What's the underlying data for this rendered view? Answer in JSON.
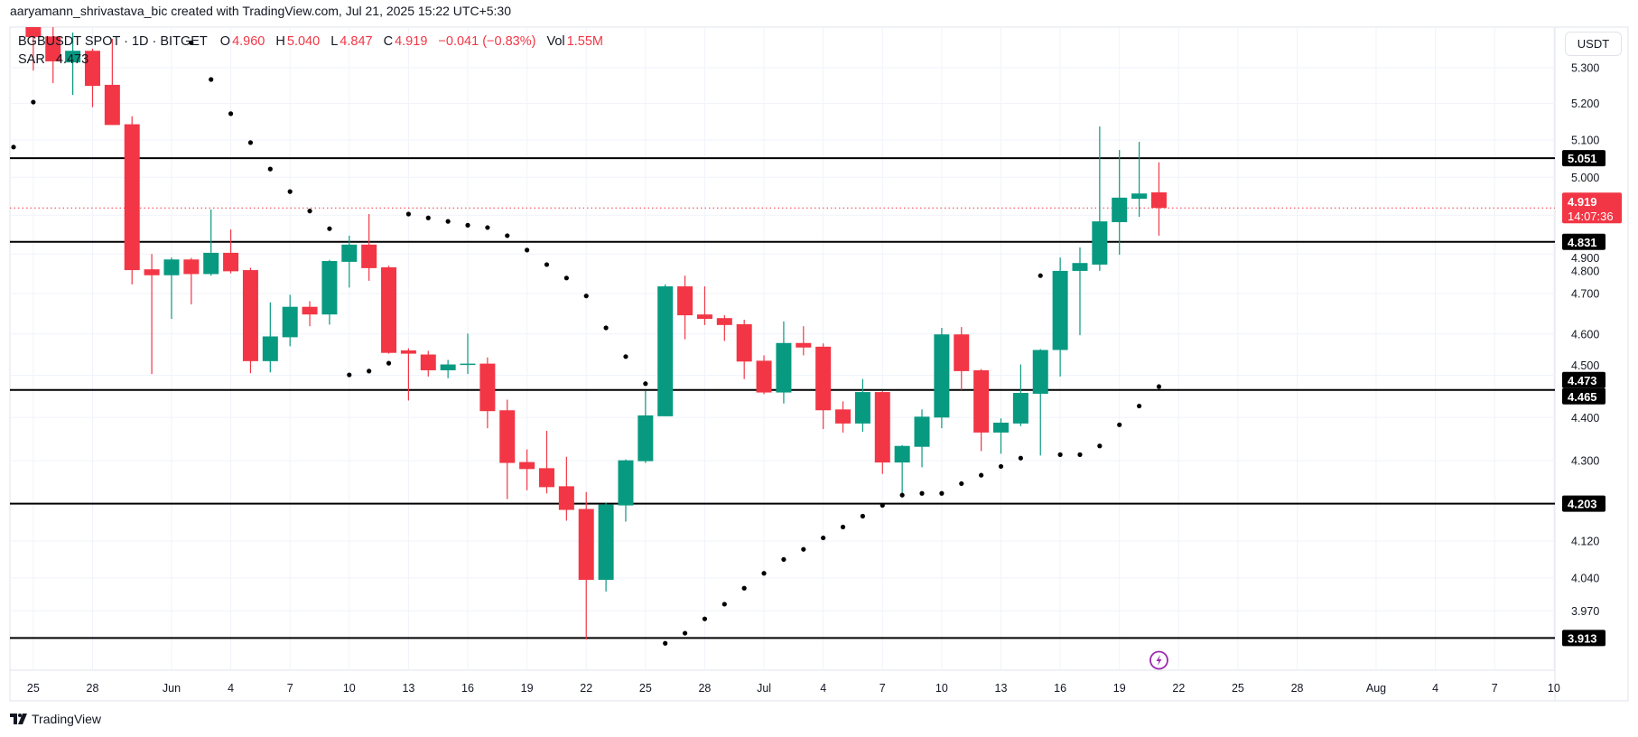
{
  "attribution": "aaryamann_shrivastava_bic created with TradingView.com, Jul 21, 2025 15:22 UTC+5:30",
  "legend": {
    "symbol": "BGBUSDT SPOT · 1D · BITGET",
    "o_label": "O",
    "o": "4.960",
    "h_label": "H",
    "h": "5.040",
    "l_label": "L",
    "l": "4.847",
    "c_label": "C",
    "c": "4.919",
    "change": "−0.041 (−0.83%)",
    "vol_label": "Vol",
    "vol": "1.55M",
    "indicator": "SAR",
    "indicator_value": "4.473"
  },
  "currency": "USDT",
  "brand": "TradingView",
  "colors": {
    "up": "#089981",
    "down": "#f23645",
    "sar": "#000000",
    "level": "#000000",
    "event": "#9c27b0",
    "grid": "#f0f3fa"
  },
  "icons": {
    "event": "lightning-bolt-icon",
    "logo": "tradingview-logo-icon"
  },
  "chart_data": {
    "type": "candlestick",
    "interval": "1D",
    "y_scale": "log",
    "ylim": [
      3.88,
      5.42
    ],
    "xlim": [
      "2025-05-24",
      "2025-08-12"
    ],
    "grid": true,
    "y_ticks": [
      "5.300",
      "5.200",
      "5.100",
      "5.000",
      "4.900",
      "4.800",
      "4.700",
      "4.600",
      "4.500",
      "4.400",
      "4.300",
      "4.120",
      "4.040",
      "3.970"
    ],
    "x_ticks": [
      {
        "date": "2025-05-25",
        "label": "25"
      },
      {
        "date": "2025-05-28",
        "label": "28"
      },
      {
        "date": "2025-06-01",
        "label": "Jun"
      },
      {
        "date": "2025-06-04",
        "label": "4"
      },
      {
        "date": "2025-06-07",
        "label": "7"
      },
      {
        "date": "2025-06-10",
        "label": "10"
      },
      {
        "date": "2025-06-13",
        "label": "13"
      },
      {
        "date": "2025-06-16",
        "label": "16"
      },
      {
        "date": "2025-06-19",
        "label": "19"
      },
      {
        "date": "2025-06-22",
        "label": "22"
      },
      {
        "date": "2025-06-25",
        "label": "25"
      },
      {
        "date": "2025-06-28",
        "label": "28"
      },
      {
        "date": "2025-07-01",
        "label": "Jul"
      },
      {
        "date": "2025-07-04",
        "label": "4"
      },
      {
        "date": "2025-07-07",
        "label": "7"
      },
      {
        "date": "2025-07-10",
        "label": "10"
      },
      {
        "date": "2025-07-13",
        "label": "13"
      },
      {
        "date": "2025-07-16",
        "label": "16"
      },
      {
        "date": "2025-07-19",
        "label": "19"
      },
      {
        "date": "2025-07-22",
        "label": "22"
      },
      {
        "date": "2025-07-25",
        "label": "25"
      },
      {
        "date": "2025-07-28",
        "label": "28"
      },
      {
        "date": "2025-08-01",
        "label": "Aug"
      },
      {
        "date": "2025-08-04",
        "label": "4"
      },
      {
        "date": "2025-08-07",
        "label": "7"
      },
      {
        "date": "2025-08-10",
        "label": "10"
      }
    ],
    "candles": [
      [
        "2025-05-25",
        5.42,
        5.48,
        5.292,
        5.387
      ],
      [
        "2025-05-26",
        5.389,
        5.45,
        5.257,
        5.318
      ],
      [
        "2025-05-27",
        5.315,
        5.4,
        5.224,
        5.348
      ],
      [
        "2025-05-28",
        5.348,
        5.354,
        5.19,
        5.249
      ],
      [
        "2025-05-29",
        5.252,
        5.382,
        5.141,
        5.141
      ],
      [
        "2025-05-30",
        5.143,
        5.165,
        4.723,
        4.759
      ],
      [
        "2025-05-31",
        4.761,
        4.8,
        4.503,
        4.746
      ],
      [
        "2025-06-01",
        4.746,
        4.791,
        4.637,
        4.786
      ],
      [
        "2025-06-02",
        4.786,
        4.79,
        4.673,
        4.749
      ],
      [
        "2025-06-03",
        4.749,
        4.915,
        4.745,
        4.803
      ],
      [
        "2025-06-04",
        4.803,
        4.863,
        4.751,
        4.756
      ],
      [
        "2025-06-05",
        4.759,
        4.765,
        4.505,
        4.534
      ],
      [
        "2025-06-06",
        4.534,
        4.678,
        4.507,
        4.594
      ],
      [
        "2025-06-07",
        4.592,
        4.697,
        4.57,
        4.667
      ],
      [
        "2025-06-08",
        4.667,
        4.681,
        4.619,
        4.648
      ],
      [
        "2025-06-09",
        4.648,
        4.785,
        4.623,
        4.782
      ],
      [
        "2025-06-10",
        4.78,
        4.847,
        4.715,
        4.824
      ],
      [
        "2025-06-11",
        4.824,
        4.903,
        4.732,
        4.764
      ],
      [
        "2025-06-12",
        4.766,
        4.77,
        4.552,
        4.554
      ],
      [
        "2025-06-13",
        4.56,
        4.565,
        4.44,
        4.552
      ],
      [
        "2025-06-14",
        4.55,
        4.559,
        4.497,
        4.512
      ],
      [
        "2025-06-15",
        4.512,
        4.537,
        4.493,
        4.526
      ],
      [
        "2025-06-16",
        4.526,
        4.601,
        4.503,
        4.528
      ],
      [
        "2025-06-17",
        4.528,
        4.543,
        4.375,
        4.415
      ],
      [
        "2025-06-18",
        4.417,
        4.442,
        4.213,
        4.295
      ],
      [
        "2025-06-19",
        4.297,
        4.326,
        4.233,
        4.281
      ],
      [
        "2025-06-20",
        4.283,
        4.369,
        4.226,
        4.24
      ],
      [
        "2025-06-21",
        4.242,
        4.309,
        4.165,
        4.189
      ],
      [
        "2025-06-22",
        4.191,
        4.229,
        3.91,
        4.036
      ],
      [
        "2025-06-23",
        4.036,
        4.205,
        4.011,
        4.201
      ],
      [
        "2025-06-24",
        4.199,
        4.303,
        4.163,
        4.301
      ],
      [
        "2025-06-25",
        4.299,
        4.463,
        4.295,
        4.405
      ],
      [
        "2025-06-26",
        4.403,
        4.723,
        4.403,
        4.718
      ],
      [
        "2025-06-27",
        4.718,
        4.745,
        4.587,
        4.646
      ],
      [
        "2025-06-28",
        4.648,
        4.718,
        4.622,
        4.637
      ],
      [
        "2025-06-29",
        4.639,
        4.646,
        4.583,
        4.622
      ],
      [
        "2025-06-30",
        4.624,
        4.635,
        4.491,
        4.533
      ],
      [
        "2025-07-01",
        4.535,
        4.548,
        4.455,
        4.459
      ],
      [
        "2025-07-02",
        4.459,
        4.631,
        4.433,
        4.578
      ],
      [
        "2025-07-03",
        4.578,
        4.619,
        4.548,
        4.567
      ],
      [
        "2025-07-04",
        4.569,
        4.577,
        4.373,
        4.417
      ],
      [
        "2025-07-05",
        4.419,
        4.438,
        4.365,
        4.386
      ],
      [
        "2025-07-06",
        4.386,
        4.491,
        4.367,
        4.46
      ],
      [
        "2025-07-07",
        4.46,
        4.462,
        4.27,
        4.296
      ],
      [
        "2025-07-08",
        4.296,
        4.336,
        4.222,
        4.334
      ],
      [
        "2025-07-09",
        4.332,
        4.419,
        4.285,
        4.402
      ],
      [
        "2025-07-10",
        4.4,
        4.615,
        4.375,
        4.599
      ],
      [
        "2025-07-11",
        4.599,
        4.617,
        4.465,
        4.51
      ],
      [
        "2025-07-12",
        4.512,
        4.515,
        4.322,
        4.365
      ],
      [
        "2025-07-13",
        4.365,
        4.398,
        4.316,
        4.388
      ],
      [
        "2025-07-14",
        4.386,
        4.526,
        4.38,
        4.458
      ],
      [
        "2025-07-15",
        4.456,
        4.563,
        4.312,
        4.561
      ],
      [
        "2025-07-16",
        4.561,
        4.791,
        4.497,
        4.757
      ],
      [
        "2025-07-17",
        4.757,
        4.817,
        4.597,
        4.777
      ],
      [
        "2025-07-18",
        4.773,
        5.137,
        4.757,
        4.884
      ],
      [
        "2025-07-19",
        4.882,
        5.073,
        4.798,
        4.946
      ],
      [
        "2025-07-20",
        4.943,
        5.095,
        4.896,
        4.957
      ],
      [
        "2025-07-21",
        4.96,
        5.04,
        4.847,
        4.919
      ]
    ],
    "sar": [
      [
        "2025-05-24",
        5.081
      ],
      [
        "2025-05-25",
        5.204
      ],
      [
        "2025-06-02",
        5.371
      ],
      [
        "2025-06-03",
        5.267
      ],
      [
        "2025-06-04",
        5.172
      ],
      [
        "2025-06-05",
        5.093
      ],
      [
        "2025-06-06",
        5.022
      ],
      [
        "2025-06-07",
        4.962
      ],
      [
        "2025-06-08",
        4.911
      ],
      [
        "2025-06-09",
        4.865
      ],
      [
        "2025-06-10",
        4.501
      ],
      [
        "2025-06-11",
        4.51
      ],
      [
        "2025-06-12",
        4.529
      ],
      [
        "2025-06-13",
        4.903
      ],
      [
        "2025-06-14",
        4.893
      ],
      [
        "2025-06-15",
        4.884
      ],
      [
        "2025-06-16",
        4.874
      ],
      [
        "2025-06-17",
        4.868
      ],
      [
        "2025-06-18",
        4.847
      ],
      [
        "2025-06-19",
        4.81
      ],
      [
        "2025-06-20",
        4.773
      ],
      [
        "2025-06-21",
        4.739
      ],
      [
        "2025-06-22",
        4.694
      ],
      [
        "2025-06-23",
        4.615
      ],
      [
        "2025-06-24",
        4.545
      ],
      [
        "2025-06-25",
        4.48
      ],
      [
        "2025-06-26",
        3.902
      ],
      [
        "2025-06-27",
        3.923
      ],
      [
        "2025-06-28",
        3.953
      ],
      [
        "2025-06-29",
        3.984
      ],
      [
        "2025-06-30",
        4.018
      ],
      [
        "2025-07-01",
        4.05
      ],
      [
        "2025-07-02",
        4.08
      ],
      [
        "2025-07-03",
        4.102
      ],
      [
        "2025-07-04",
        4.127
      ],
      [
        "2025-07-05",
        4.151
      ],
      [
        "2025-07-06",
        4.175
      ],
      [
        "2025-07-07",
        4.199
      ],
      [
        "2025-07-08",
        4.222
      ],
      [
        "2025-07-09",
        4.226
      ],
      [
        "2025-07-10",
        4.226
      ],
      [
        "2025-07-11",
        4.248
      ],
      [
        "2025-07-12",
        4.267
      ],
      [
        "2025-07-13",
        4.287
      ],
      [
        "2025-07-14",
        4.306
      ],
      [
        "2025-07-15",
        4.745
      ],
      [
        "2025-07-16",
        4.314
      ],
      [
        "2025-07-17",
        4.314
      ],
      [
        "2025-07-18",
        4.334
      ],
      [
        "2025-07-19",
        4.383
      ],
      [
        "2025-07-20",
        4.427
      ],
      [
        "2025-07-21",
        4.473
      ]
    ],
    "levels": [
      "5.051",
      "4.831",
      "4.465",
      "4.203",
      "3.913"
    ],
    "sar_label": "4.473",
    "last_price": {
      "value": "4.919",
      "countdown": "14:07:36"
    },
    "event_marker_date": "2025-07-21"
  }
}
